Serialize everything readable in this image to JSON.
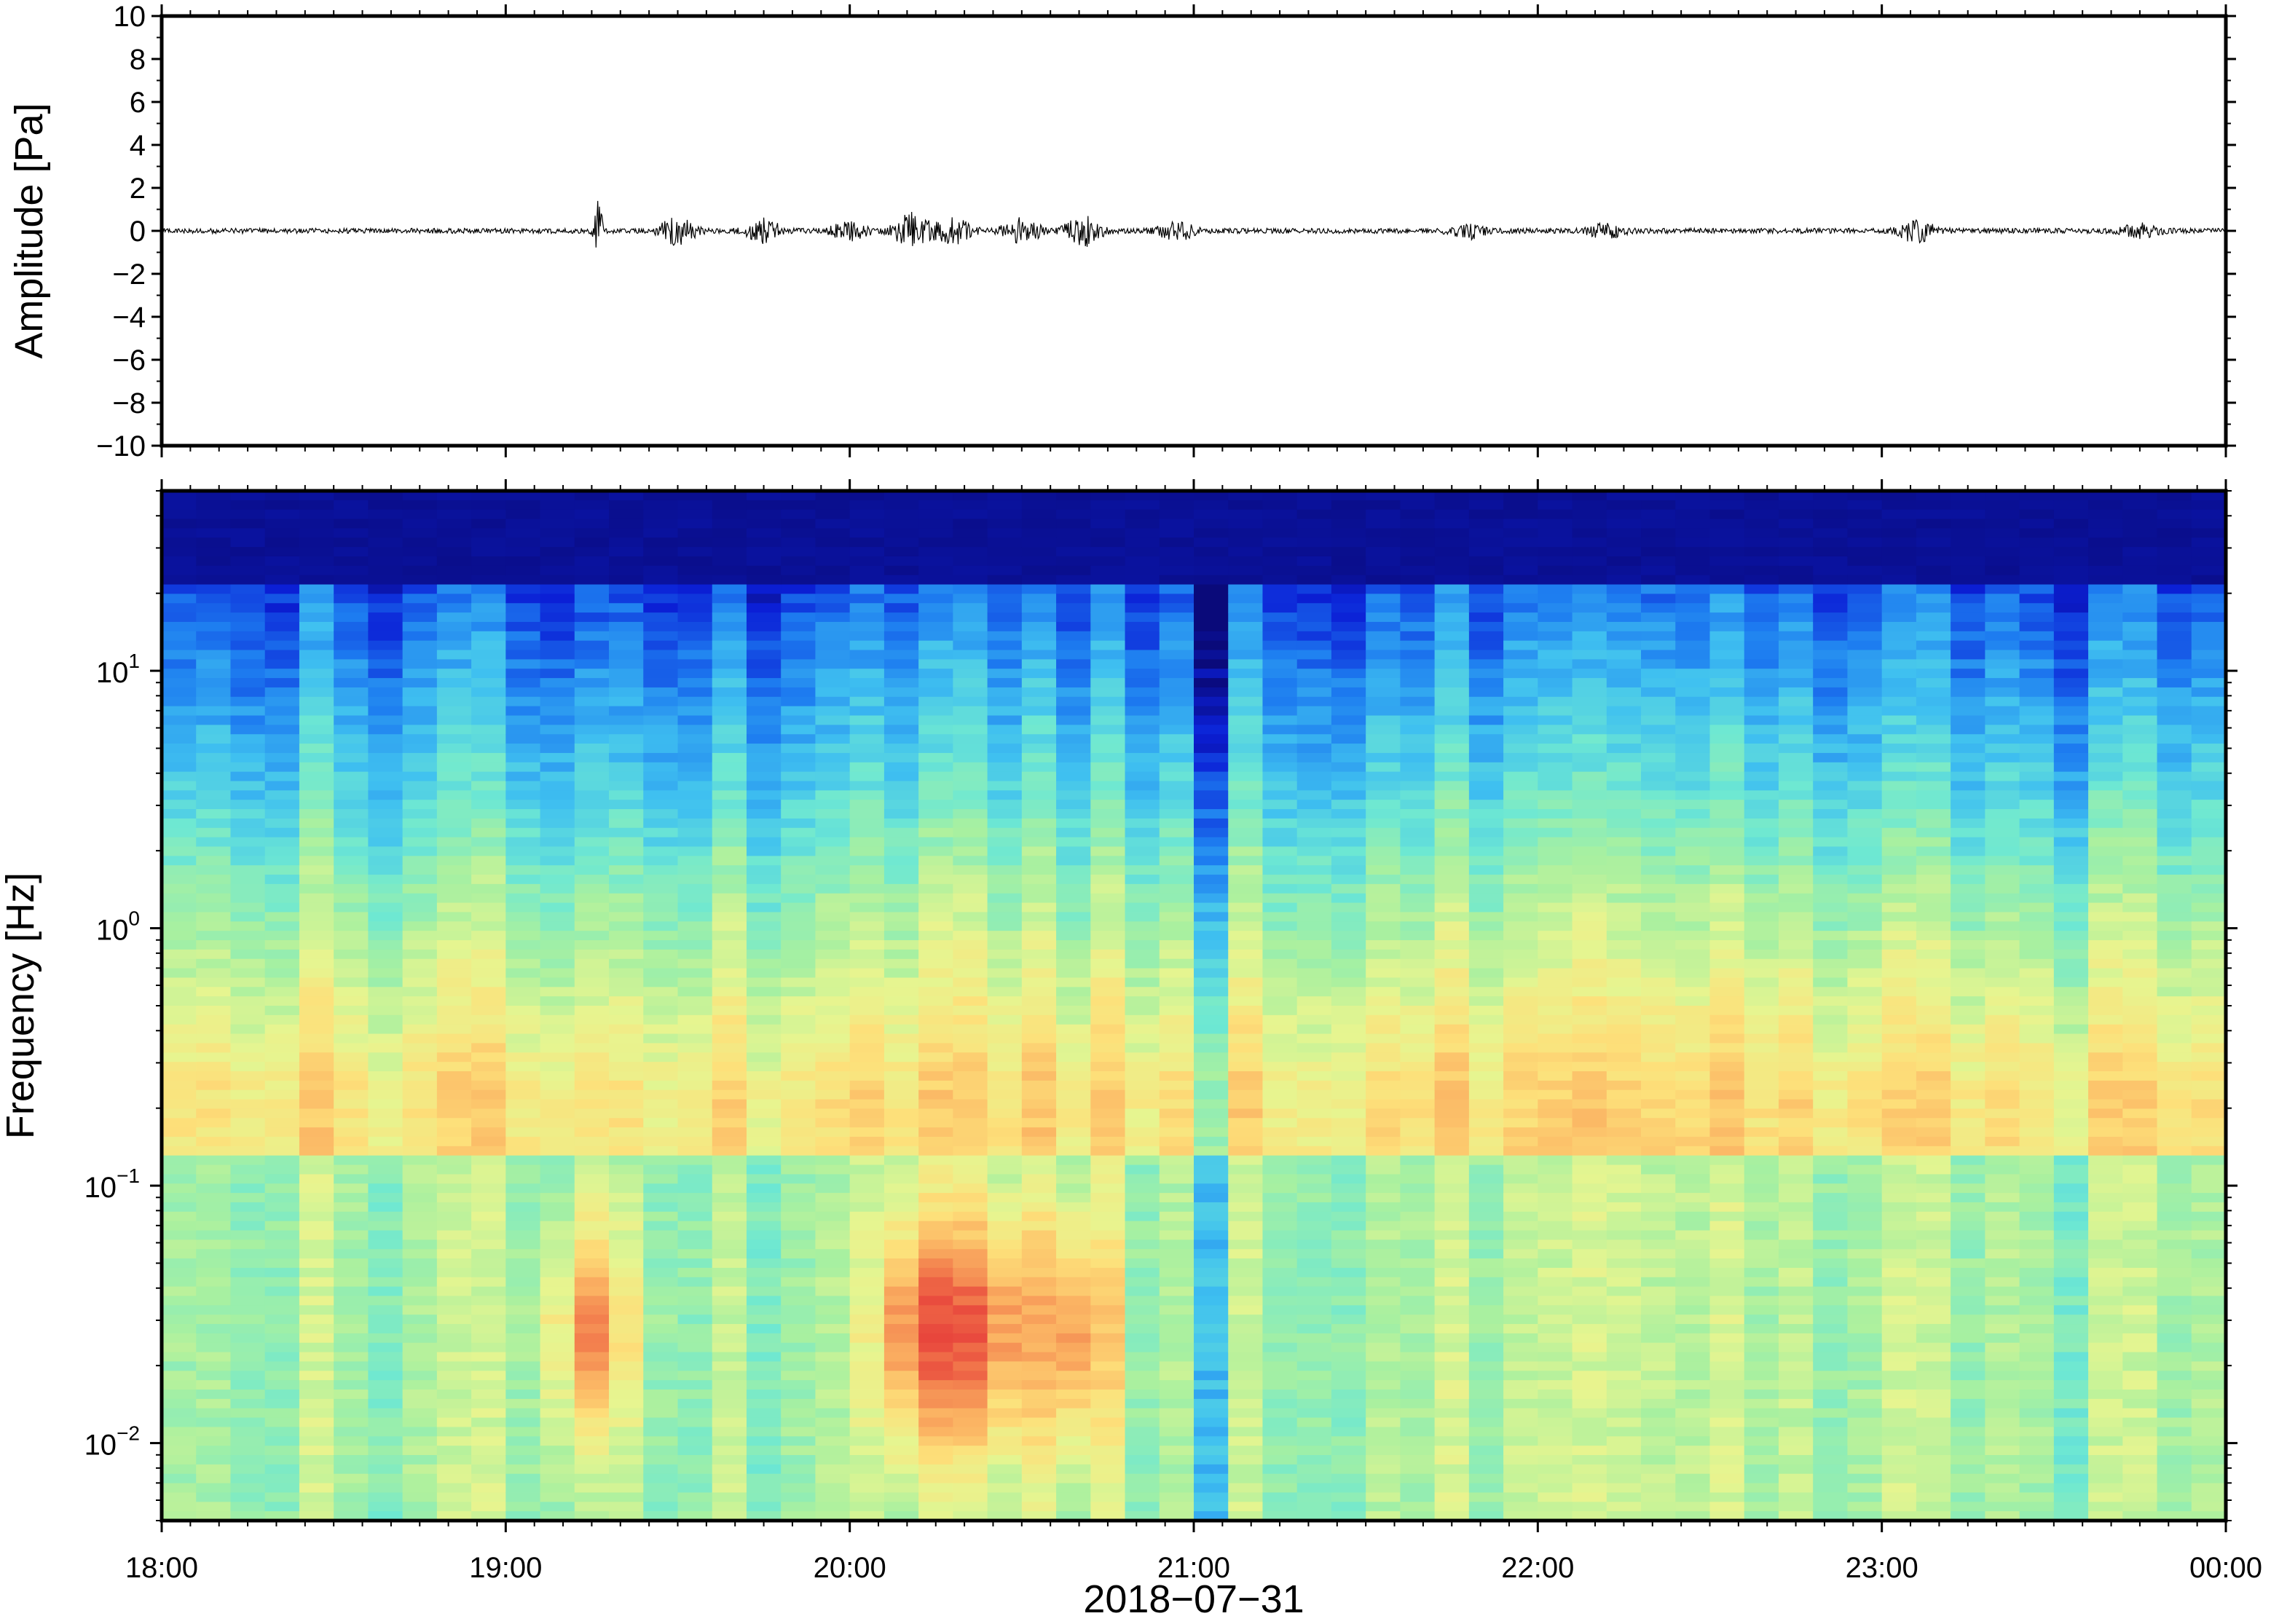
{
  "chart_data": [
    {
      "type": "line",
      "ylabel": "Amplitude [Pa]",
      "ylim": [
        -10,
        10
      ],
      "yticks": [
        10,
        8,
        6,
        4,
        2,
        0,
        -2,
        -4,
        -6,
        -8,
        -10
      ],
      "ytick_labels": [
        "10",
        "8",
        "6",
        "4",
        "2",
        "0",
        "−2",
        "−4",
        "−6",
        "−8",
        "−10"
      ],
      "xlim_hours": [
        18,
        24
      ],
      "baseline": 0,
      "bursts": [
        {
          "t": 19.27,
          "amp": 1.4
        },
        {
          "t": 19.5,
          "amp": 0.6
        },
        {
          "t": 19.75,
          "amp": 0.5
        },
        {
          "t": 20.0,
          "amp": 0.4
        },
        {
          "t": 20.18,
          "amp": 0.8
        },
        {
          "t": 20.3,
          "amp": 0.6
        },
        {
          "t": 20.5,
          "amp": 0.6
        },
        {
          "t": 20.68,
          "amp": 0.7
        },
        {
          "t": 20.95,
          "amp": 0.4
        },
        {
          "t": 21.8,
          "amp": 0.3
        },
        {
          "t": 22.2,
          "amp": 0.3
        },
        {
          "t": 23.1,
          "amp": 0.5
        },
        {
          "t": 23.75,
          "amp": 0.3
        }
      ]
    },
    {
      "type": "heatmap",
      "ylabel": "Frequency [Hz]",
      "yscale": "log",
      "ylim": [
        0.005,
        50
      ],
      "yticks": [
        0.01,
        0.1,
        1,
        10
      ],
      "ytick_labels": [
        {
          "base": "10",
          "exp": "−2"
        },
        {
          "base": "10",
          "exp": "−1"
        },
        {
          "base": "10",
          "exp": "0"
        },
        {
          "base": "10",
          "exp": "1"
        }
      ],
      "colormap": [
        "#0a0a7a",
        "#0b1fd6",
        "#1d7cf0",
        "#3fc0f0",
        "#6ee8d2",
        "#a8f0a0",
        "#e6f590",
        "#fde07a",
        "#fbb463",
        "#f27b4c",
        "#e8453c"
      ],
      "time_columns": 60,
      "low_freq_hotspots": [
        {
          "t": 19.25,
          "level": 0.9
        },
        {
          "t": 20.2,
          "level": 1.0
        },
        {
          "t": 20.4,
          "level": 0.9
        },
        {
          "t": 20.65,
          "level": 0.9
        }
      ]
    }
  ],
  "xaxis": {
    "ticks_hours": [
      18,
      19,
      20,
      21,
      22,
      23,
      24
    ],
    "tick_labels": [
      "18:00",
      "19:00",
      "20:00",
      "21:00",
      "22:00",
      "23:00",
      "00:00"
    ],
    "date_label": "2018−07−31"
  }
}
